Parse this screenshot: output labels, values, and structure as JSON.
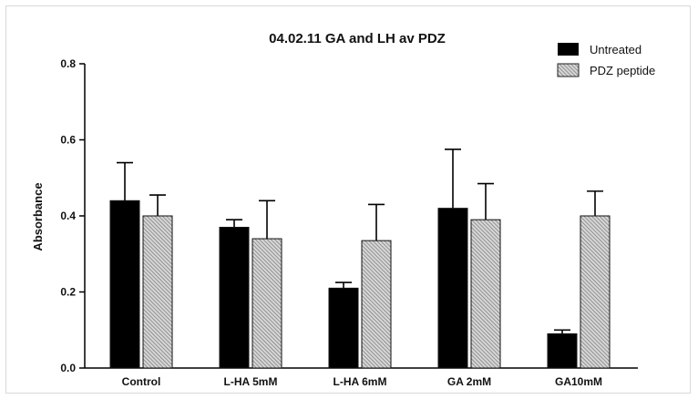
{
  "chart_data": {
    "type": "bar",
    "title": "04.02.11 GA and LH av PDZ",
    "xlabel": "",
    "ylabel": "Absorbance",
    "ylim": [
      0,
      0.8
    ],
    "yticks": [
      "0.0",
      "0.2",
      "0.4",
      "0.6",
      "0.8"
    ],
    "categories": [
      "Control",
      "L-HA 5mM",
      "L-HA 6mM",
      "GA 2mM",
      "GA10mM"
    ],
    "series": [
      {
        "name": "Untreated",
        "values": [
          0.44,
          0.37,
          0.21,
          0.42,
          0.09
        ],
        "errors": [
          0.1,
          0.02,
          0.015,
          0.155,
          0.01
        ],
        "color": "#000000",
        "fill": "solid"
      },
      {
        "name": "PDZ peptide",
        "values": [
          0.4,
          0.34,
          0.335,
          0.39,
          0.4
        ],
        "errors": [
          0.055,
          0.1,
          0.095,
          0.095,
          0.065
        ],
        "color": "#9a9a9a",
        "fill": "hatched"
      }
    ],
    "legend_position": "top-right",
    "grid": false
  }
}
